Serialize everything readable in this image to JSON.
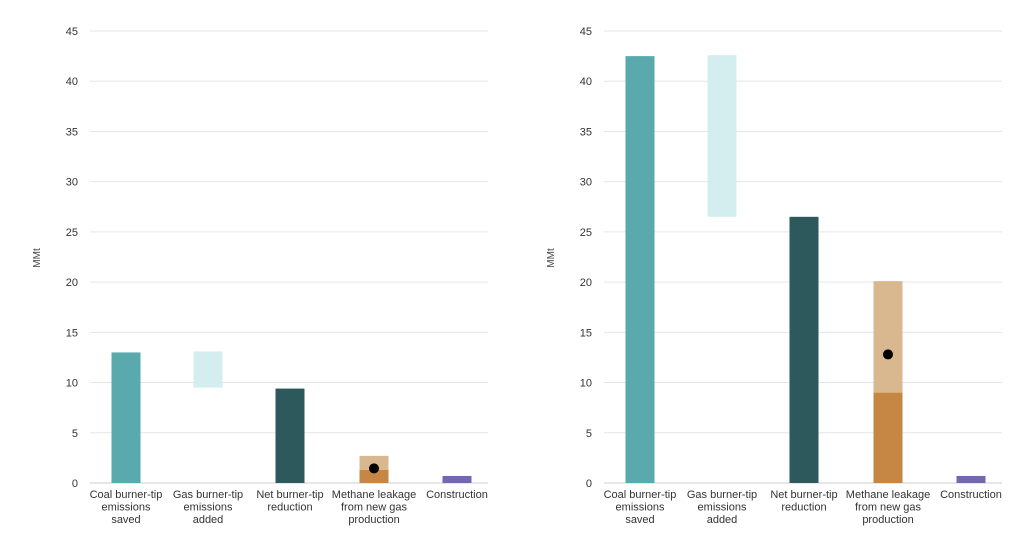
{
  "chart_data": [
    {
      "type": "bar",
      "ylabel": "MMt",
      "ylim": [
        0,
        45
      ],
      "yticks": [
        0,
        5,
        10,
        15,
        20,
        25,
        30,
        35,
        40,
        45
      ],
      "grid": true,
      "categories": [
        [
          "Coal burner-tip",
          "emissions",
          "saved"
        ],
        [
          "Gas burner-tip",
          "emissions",
          "added"
        ],
        [
          "Net burner-tip",
          "reduction"
        ],
        [
          "Methane leakage",
          "from new gas",
          "production"
        ],
        [
          "Construction"
        ]
      ],
      "bars": [
        {
          "category": 0,
          "kind": "floating",
          "low": 0,
          "high": 13,
          "color": "#5aa9ad"
        },
        {
          "category": 1,
          "kind": "floating",
          "low": 9.5,
          "high": 13.1,
          "color": "#d4eef0"
        },
        {
          "category": 2,
          "kind": "floating",
          "low": 0,
          "high": 9.4,
          "color": "#2d595c"
        },
        {
          "category": 3,
          "kind": "range",
          "low": 0,
          "high": 1.3,
          "range_high": 2.7,
          "point": 1.45,
          "color": "#c68744",
          "range_color": "#dab88f"
        },
        {
          "category": 4,
          "kind": "floating",
          "low": 0,
          "high": 0.7,
          "color": "#7268b0"
        }
      ]
    },
    {
      "type": "bar",
      "ylabel": "MMt",
      "ylim": [
        0,
        45
      ],
      "yticks": [
        0,
        5,
        10,
        15,
        20,
        25,
        30,
        35,
        40,
        45
      ],
      "grid": true,
      "categories": [
        [
          "Coal burner-tip",
          "emissions",
          "saved"
        ],
        [
          "Gas burner-tip",
          "emissions",
          "added"
        ],
        [
          "Net burner-tip",
          "reduction"
        ],
        [
          "Methane leakage",
          "from new gas",
          "production"
        ],
        [
          "Construction"
        ]
      ],
      "bars": [
        {
          "category": 0,
          "kind": "floating",
          "low": 0,
          "high": 42.5,
          "color": "#5aa9ad"
        },
        {
          "category": 1,
          "kind": "floating",
          "low": 26.5,
          "high": 42.6,
          "color": "#d4eef0"
        },
        {
          "category": 2,
          "kind": "floating",
          "low": 0,
          "high": 26.5,
          "color": "#2d595c"
        },
        {
          "category": 3,
          "kind": "range",
          "low": 0,
          "high": 9.0,
          "range_high": 20.1,
          "point": 12.8,
          "color": "#c68744",
          "range_color": "#dab88f"
        },
        {
          "category": 4,
          "kind": "floating",
          "low": 0,
          "high": 0.7,
          "color": "#7268b0"
        }
      ]
    }
  ]
}
